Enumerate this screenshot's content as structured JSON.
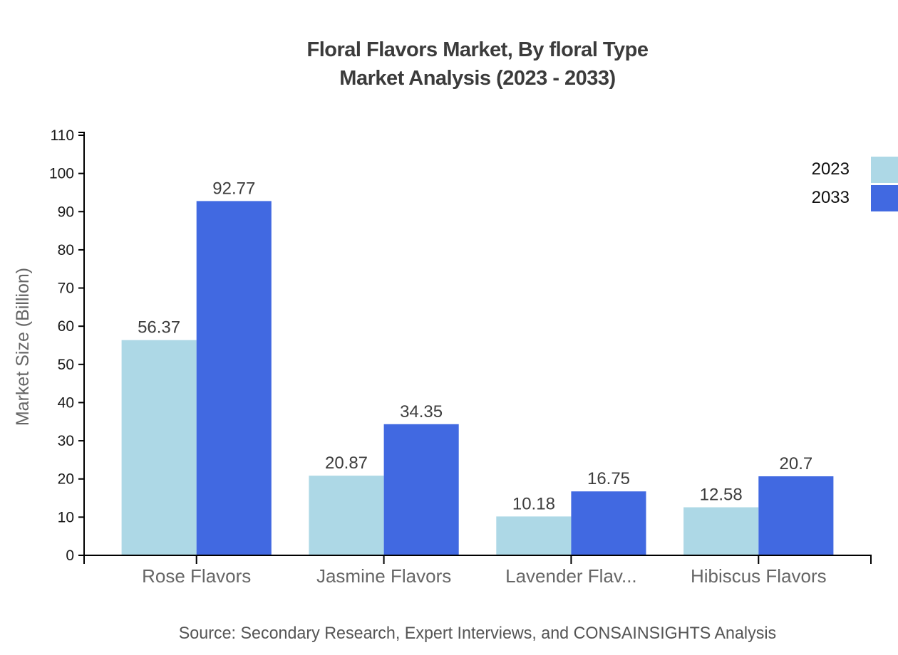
{
  "title": {
    "line1": "Floral Flavors Market, By floral Type",
    "line2": "Market Analysis (2023 - 2033)"
  },
  "source": "Source: Secondary Research, Expert Interviews, and CONSAINSIGHTS Analysis",
  "legend": [
    {
      "label": "2023"
    },
    {
      "label": "2033"
    }
  ],
  "chart_data": {
    "type": "bar",
    "title": "Floral Flavors Market, By floral Type Market Analysis (2023 - 2033)",
    "categories": [
      "Rose Flavors",
      "Jasmine Flavors",
      "Lavender Flav...",
      "Hibiscus Flavors"
    ],
    "series": [
      {
        "name": "2023",
        "color": "#ADD8E6",
        "values": [
          56.37,
          20.87,
          10.18,
          12.58
        ]
      },
      {
        "name": "2033",
        "color": "#4169E1",
        "values": [
          92.77,
          34.35,
          16.75,
          20.7
        ]
      }
    ],
    "xlabel": "",
    "ylabel": "Market Size (Billion)",
    "ylim": [
      0,
      110
    ],
    "yticks": [
      0,
      10,
      20,
      30,
      40,
      50,
      60,
      70,
      80,
      90,
      100,
      110
    ],
    "grid": false,
    "legend_position": "top-right",
    "value_labels": true
  },
  "colors": {
    "title": "#3b3b3b",
    "axis": "#000000",
    "tick_label": "#1a1a1a",
    "category_label": "#666666",
    "value_label": "#3d3d3d",
    "source_text": "#555555"
  }
}
